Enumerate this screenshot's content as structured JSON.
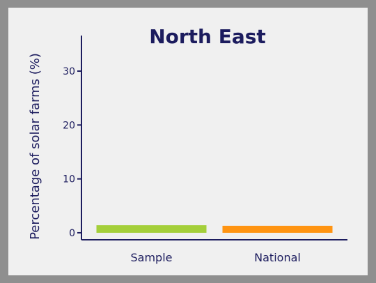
{
  "chart_data": {
    "type": "bar",
    "title": "North East",
    "xlabel": "",
    "ylabel": "Percentage of solar farms (%)",
    "categories": [
      "Sample",
      "National"
    ],
    "values": [
      1.4,
      1.3
    ],
    "colors": [
      "#a4cf3a",
      "#ff9412"
    ],
    "yticks": [
      0,
      10,
      20,
      30
    ],
    "ylim": [
      -1.3,
      36.6
    ],
    "grid": false,
    "axis_color": "#1c1c5e",
    "title_color": "#1c1c5e",
    "background": "#f0f0f0",
    "frame_color": "#8f8f8f"
  }
}
